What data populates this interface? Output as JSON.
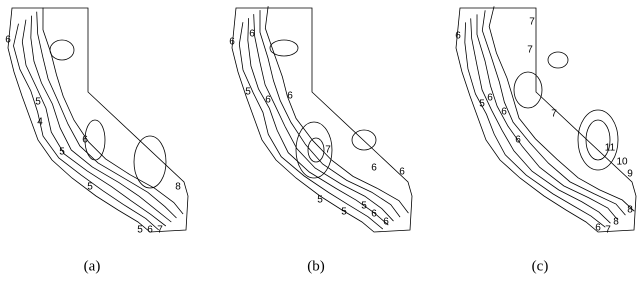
{
  "panels": [
    {
      "label": "(a)",
      "contour_labels": [
        "6",
        "5",
        "4",
        "5",
        "6",
        "5",
        "8",
        "5",
        "6",
        "7"
      ]
    },
    {
      "label": "(b)",
      "contour_labels": [
        "6",
        "6",
        "5",
        "6",
        "6",
        "7",
        "6",
        "5",
        "6",
        "5",
        "6",
        "6",
        "5"
      ]
    },
    {
      "label": "(c)",
      "contour_labels": [
        "7",
        "6",
        "7",
        "6",
        "5",
        "6",
        "6",
        "7",
        "11",
        "10",
        "9",
        "8",
        "6",
        "7",
        "8"
      ]
    }
  ]
}
